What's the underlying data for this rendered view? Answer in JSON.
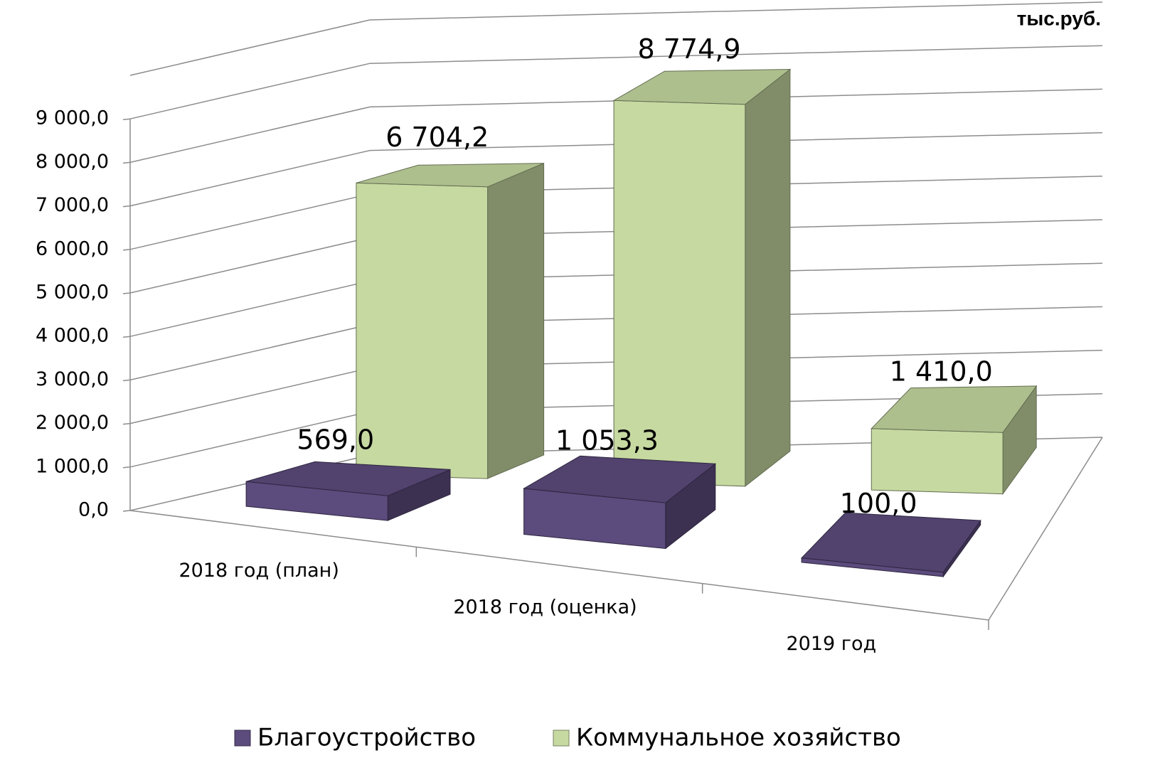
{
  "chart_data": {
    "type": "bar3d",
    "unit": "тыс.руб.",
    "categories": [
      "2018 год (план)",
      "2018 год (оценка)",
      "2019 год"
    ],
    "series": [
      {
        "name": "Благоустройство",
        "color": "#5c4b7d",
        "values": [
          569.0,
          1053.3,
          100.0
        ],
        "value_labels": [
          "569,0",
          "1 053,3",
          "100,0"
        ]
      },
      {
        "name": "Коммунальное хозяйство",
        "color": "#c6d9a1",
        "values": [
          6704.2,
          8774.9,
          1410.0
        ],
        "value_labels": [
          "6 704,2",
          "8 774,9",
          "1 410,0"
        ]
      }
    ],
    "ylim": [
      0,
      10000
    ],
    "yticks": [
      {
        "value": 0,
        "label": "0,0"
      },
      {
        "value": 1000,
        "label": "1 000,0"
      },
      {
        "value": 2000,
        "label": "2 000,0"
      },
      {
        "value": 3000,
        "label": "3 000,0"
      },
      {
        "value": 4000,
        "label": "4 000,0"
      },
      {
        "value": 5000,
        "label": "5 000,0"
      },
      {
        "value": 6000,
        "label": "6 000,0"
      },
      {
        "value": 7000,
        "label": "7 000,0"
      },
      {
        "value": 8000,
        "label": "8 000,0"
      },
      {
        "value": 9000,
        "label": "9 000,0"
      }
    ],
    "grid": true,
    "legend": "bottom"
  }
}
